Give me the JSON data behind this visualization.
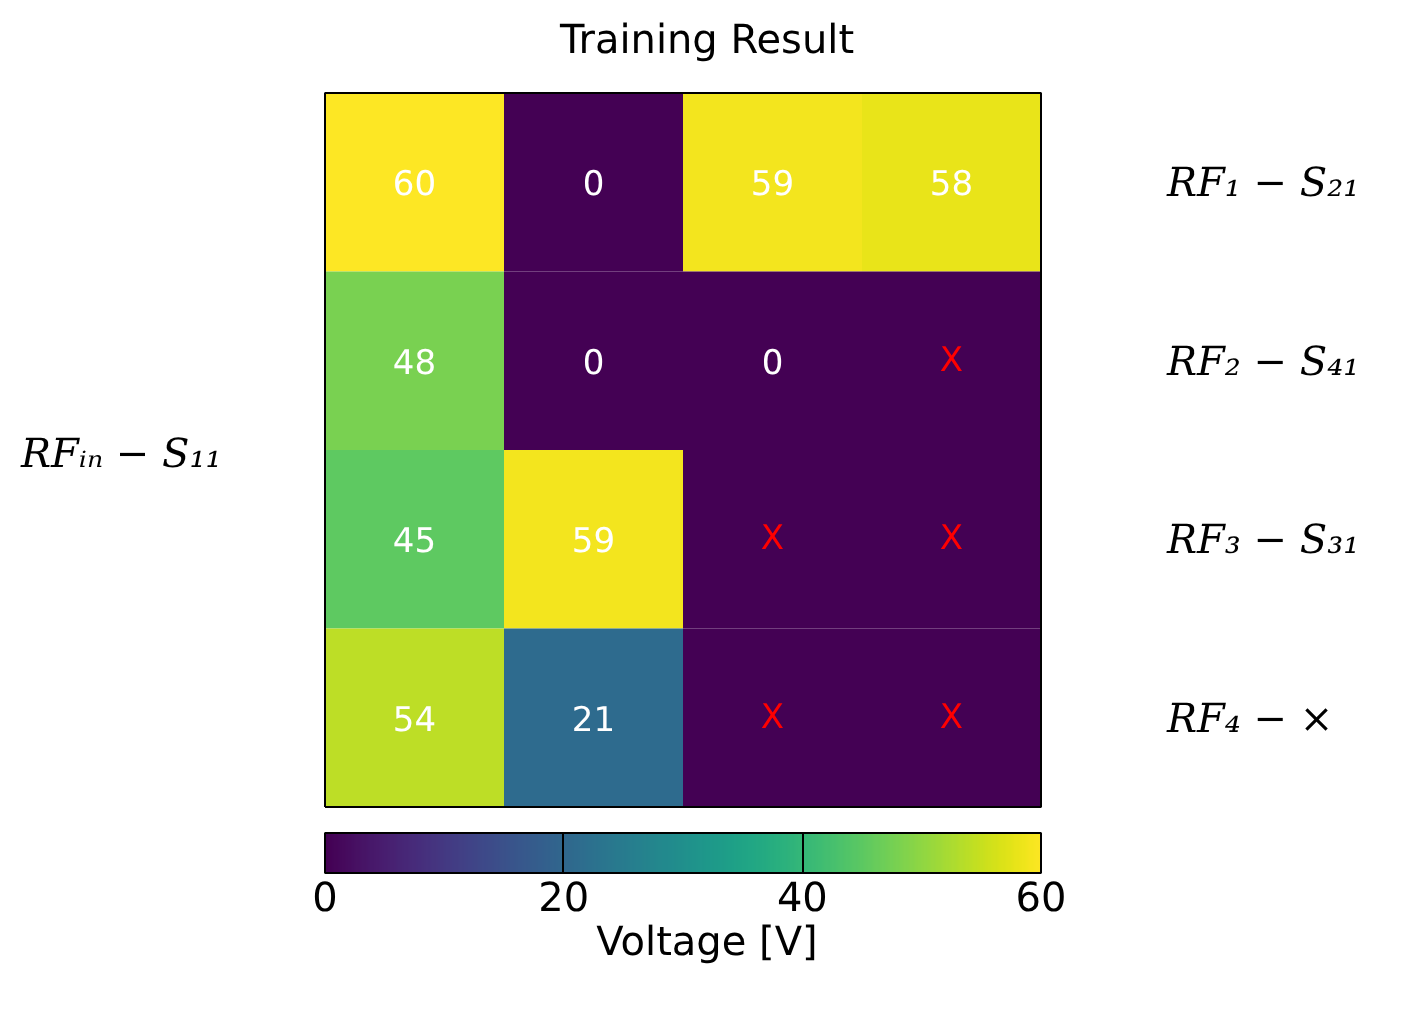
{
  "chart_data": {
    "type": "heatmap",
    "title": "Training Result",
    "categories": [
      null,
      null,
      null,
      null
    ],
    "y_categories": [
      null,
      null,
      null,
      null
    ],
    "y2_categories": [
      "RF₁ − S₂₁",
      "RF₂ − S₄₁",
      "RF₃ − S₃₁",
      "RF₄ − ×"
    ],
    "cells": [
      [
        60,
        0,
        59,
        58
      ],
      [
        48,
        0,
        0,
        0
      ],
      [
        45,
        59,
        0,
        0
      ],
      [
        54,
        21,
        0,
        0
      ]
    ],
    "cell_labels": [
      [
        "60",
        "0",
        "59",
        "58"
      ],
      [
        "48",
        "0",
        "0",
        "X"
      ],
      [
        "45",
        "59",
        "X",
        "X"
      ],
      [
        "54",
        "21",
        "X",
        "X"
      ]
    ],
    "clim": [
      0,
      60
    ],
    "cticks": [
      0,
      20,
      40,
      60
    ],
    "clabel": "Voltage [V]",
    "annotations": [
      "RFᵢₙ − S₁₁"
    ]
  }
}
